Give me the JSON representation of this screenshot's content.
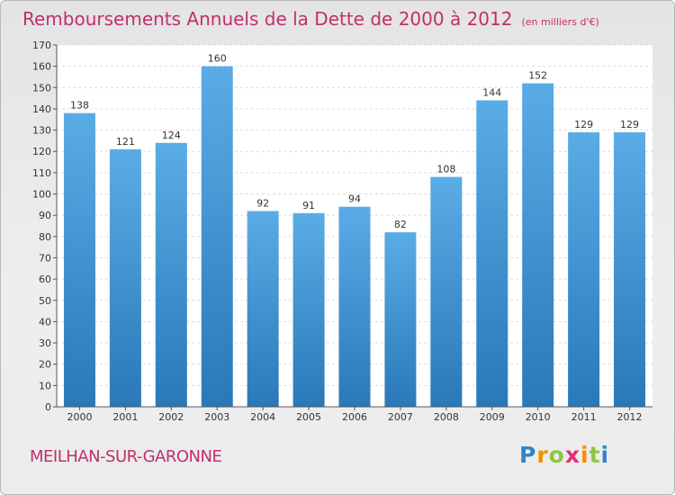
{
  "header": {
    "title": "Remboursements Annuels de la Dette de 2000 à 2012",
    "unit": "(en milliers d'€)"
  },
  "footer": {
    "town": "MEILHAN-SUR-GARONNE",
    "logo_text": "Proxiti"
  },
  "colors": {
    "title": "#c0306b",
    "bar_top": "#5aace6",
    "bar_bottom": "#2a78b8"
  },
  "chart_data": {
    "type": "bar",
    "categories": [
      "2000",
      "2001",
      "2002",
      "2003",
      "2004",
      "2005",
      "2006",
      "2007",
      "2008",
      "2009",
      "2010",
      "2011",
      "2012"
    ],
    "values": [
      138,
      121,
      124,
      160,
      92,
      91,
      94,
      82,
      108,
      144,
      152,
      129,
      129
    ],
    "title": "Remboursements Annuels de la Dette de 2000 à 2012",
    "xlabel": "",
    "ylabel": "",
    "ylim": [
      0,
      170
    ],
    "yticks": [
      0,
      10,
      20,
      30,
      40,
      50,
      60,
      70,
      80,
      90,
      100,
      110,
      120,
      130,
      140,
      150,
      160,
      170
    ],
    "grid": true,
    "data_labels": true
  }
}
